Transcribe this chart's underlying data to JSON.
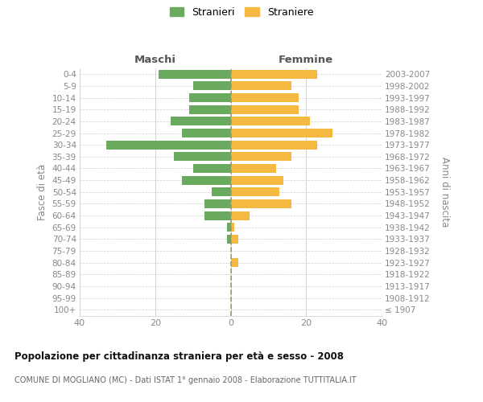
{
  "age_groups": [
    "100+",
    "95-99",
    "90-94",
    "85-89",
    "80-84",
    "75-79",
    "70-74",
    "65-69",
    "60-64",
    "55-59",
    "50-54",
    "45-49",
    "40-44",
    "35-39",
    "30-34",
    "25-29",
    "20-24",
    "15-19",
    "10-14",
    "5-9",
    "0-4"
  ],
  "birth_years": [
    "≤ 1907",
    "1908-1912",
    "1913-1917",
    "1918-1922",
    "1923-1927",
    "1928-1932",
    "1933-1937",
    "1938-1942",
    "1943-1947",
    "1948-1952",
    "1953-1957",
    "1958-1962",
    "1963-1967",
    "1968-1972",
    "1973-1977",
    "1978-1982",
    "1983-1987",
    "1988-1992",
    "1993-1997",
    "1998-2002",
    "2003-2007"
  ],
  "maschi": [
    0,
    0,
    0,
    0,
    0,
    0,
    1,
    1,
    7,
    7,
    5,
    13,
    10,
    15,
    33,
    13,
    16,
    11,
    11,
    10,
    19
  ],
  "femmine": [
    0,
    0,
    0,
    0,
    2,
    0,
    2,
    1,
    5,
    16,
    13,
    14,
    12,
    16,
    23,
    27,
    21,
    18,
    18,
    16,
    23
  ],
  "color_maschi": "#6aaa5e",
  "color_femmine": "#f5b942",
  "title": "Popolazione per cittadinanza straniera per età e sesso - 2008",
  "subtitle": "COMUNE DI MOGLIANO (MC) - Dati ISTAT 1° gennaio 2008 - Elaborazione TUTTITALIA.IT",
  "ylabel_left": "Fasce di età",
  "ylabel_right": "Anni di nascita",
  "legend_maschi": "Stranieri",
  "legend_femmine": "Straniere",
  "header_left": "Maschi",
  "header_right": "Femmine",
  "xlim": 40,
  "background_color": "#ffffff",
  "grid_color": "#cccccc",
  "zero_line_color": "#999977",
  "tick_color": "#888888",
  "title_color": "#111111",
  "subtitle_color": "#666666",
  "header_color": "#555555"
}
